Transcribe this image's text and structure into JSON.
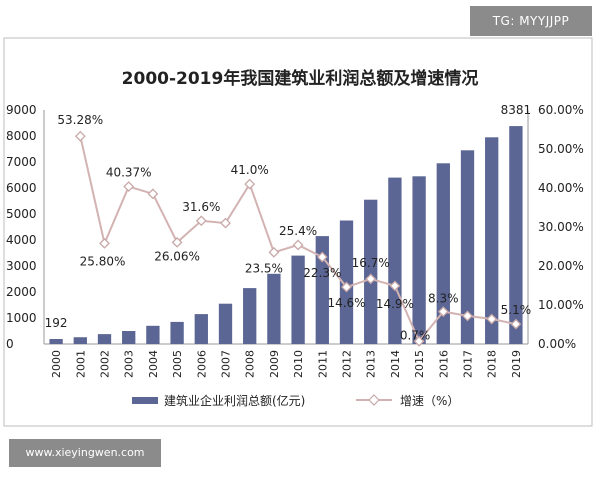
{
  "chart_data": {
    "type": "bar+line",
    "title": "2000-2019年我国建筑业利润总额及增速情况",
    "categories": [
      "2000",
      "2001",
      "2002",
      "2003",
      "2004",
      "2005",
      "2006",
      "2007",
      "2008",
      "2009",
      "2010",
      "2011",
      "2012",
      "2013",
      "2014",
      "2015",
      "2016",
      "2017",
      "2018",
      "2019"
    ],
    "series": [
      {
        "name": "建筑业企业利润总额(亿元)",
        "type": "bar",
        "axis": "left",
        "color": "#5b6694",
        "values": [
          192,
          260,
          380,
          500,
          700,
          850,
          1150,
          1550,
          2150,
          2700,
          3400,
          4150,
          4750,
          5550,
          6400,
          6450,
          6950,
          7450,
          7950,
          8381
        ]
      },
      {
        "name": "增速(%)",
        "type": "line",
        "axis": "right",
        "color": "#d3b2b2",
        "values": [
          null,
          53.28,
          25.8,
          40.37,
          38.5,
          26.06,
          31.6,
          31.0,
          41.0,
          23.5,
          25.4,
          22.3,
          14.6,
          16.7,
          14.9,
          0.7,
          8.3,
          7.2,
          6.4,
          5.1
        ]
      }
    ],
    "y_left": {
      "min": 0,
      "max": 9000,
      "step": 1000,
      "ticks": [
        "0",
        "1000",
        "2000",
        "3000",
        "4000",
        "5000",
        "6000",
        "7000",
        "8000",
        "9000"
      ]
    },
    "y_right": {
      "min": 0,
      "max": 60,
      "step": 10,
      "ticks": [
        "0.00%",
        "10.00%",
        "20.00%",
        "30.00%",
        "40.00%",
        "50.00%",
        "60.00%"
      ]
    },
    "bar_labels": [
      {
        "index": 0,
        "text": "192"
      },
      {
        "index": 19,
        "text": "8381"
      }
    ],
    "line_labels": [
      {
        "index": 1,
        "text": "53.28%"
      },
      {
        "index": 2,
        "text": "25.80%"
      },
      {
        "index": 3,
        "text": "40.37%"
      },
      {
        "index": 5,
        "text": "26.06%"
      },
      {
        "index": 6,
        "text": "31.6%"
      },
      {
        "index": 8,
        "text": "41.0%"
      },
      {
        "index": 9,
        "text": "23.5%"
      },
      {
        "index": 10,
        "text": "25.4%"
      },
      {
        "index": 11,
        "text": "22.3%"
      },
      {
        "index": 12,
        "text": "14.6%"
      },
      {
        "index": 13,
        "text": "16.7%"
      },
      {
        "index": 14,
        "text": "14.9%"
      },
      {
        "index": 15,
        "text": "0.7%"
      },
      {
        "index": 16,
        "text": "8.3%"
      },
      {
        "index": 19,
        "text": "5.1%"
      }
    ],
    "legend": {
      "placement": "bottom",
      "bar_label": "建筑业企业利润总额(亿元)",
      "line_label": "增速（%）"
    },
    "grid": false
  },
  "watermarks": {
    "top_right": "TG: MYYJJPP",
    "bottom_left": "www.xieyingwen.com"
  }
}
